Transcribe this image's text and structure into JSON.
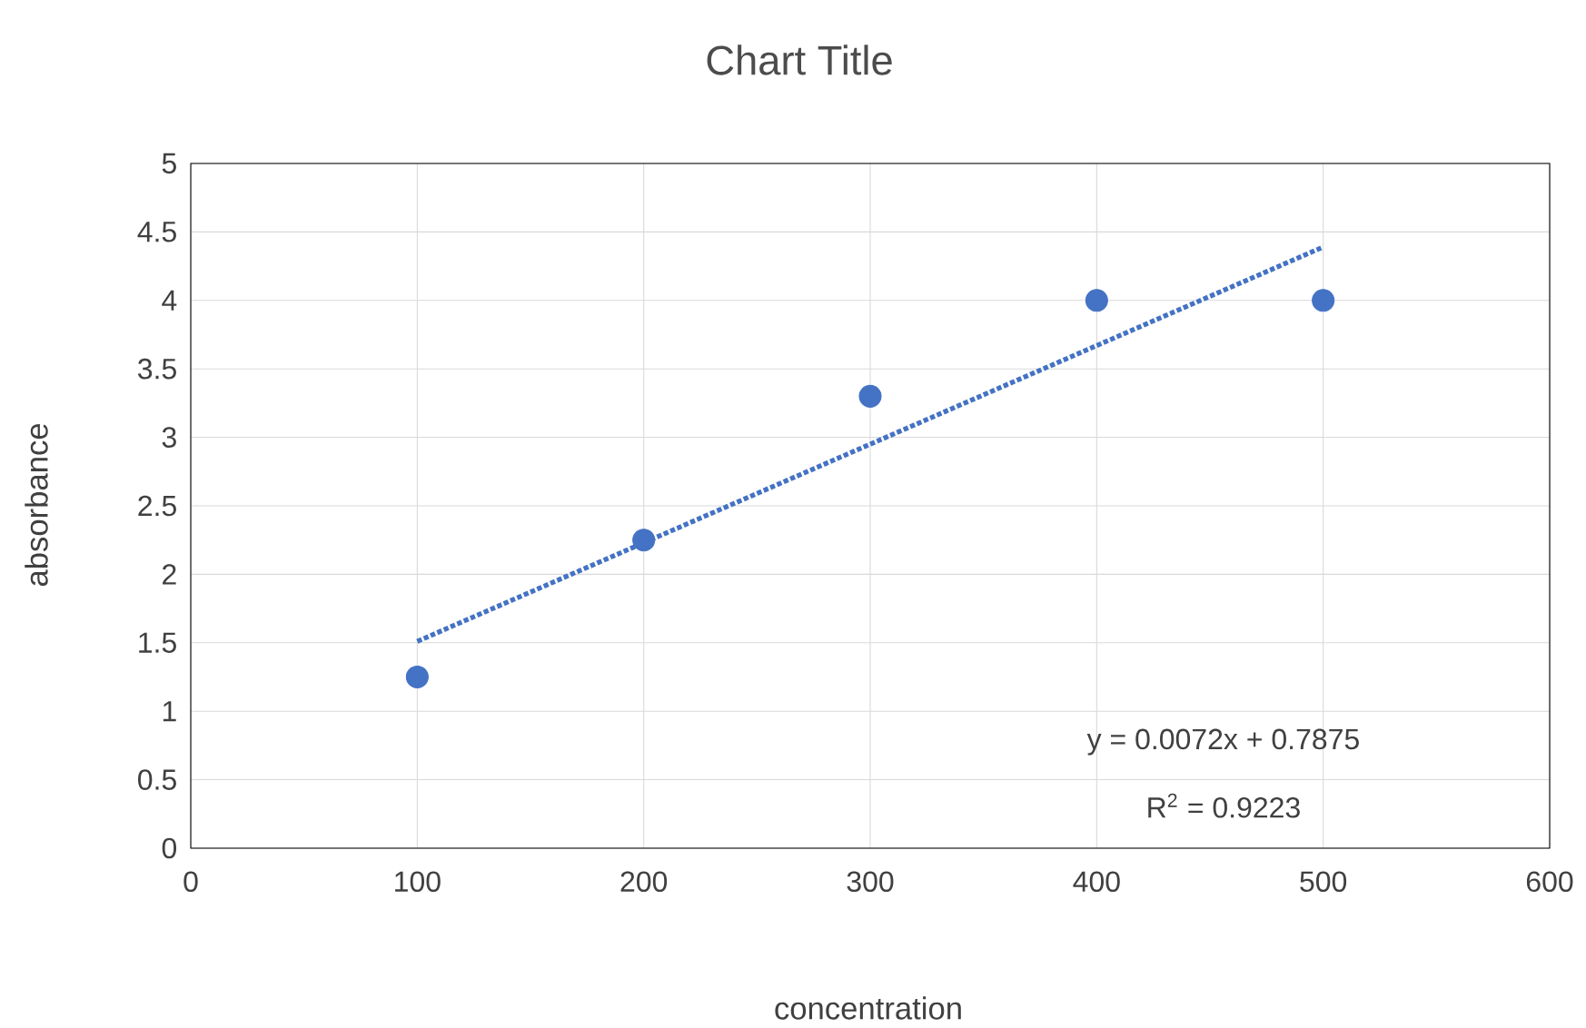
{
  "chart_data": {
    "type": "scatter",
    "title": "Chart Title",
    "xlabel": "concentration",
    "ylabel": "absorbance",
    "series": [
      {
        "color": "#4472c4",
        "x": [
          100,
          200,
          300,
          400,
          500
        ],
        "values": [
          1.25,
          2.25,
          3.3,
          4.0,
          4.0
        ],
        "marker": "circle"
      },
      {
        "type": "line",
        "color": "#4472c4",
        "x": [
          100,
          500
        ],
        "values": [
          1.51,
          4.39
        ],
        "line_style": "dotted",
        "marker": "none"
      }
    ],
    "annotations": [
      "y = 0.0072x + 0.7875",
      "R$^{2}$ = 0.9223"
    ],
    "xlim": [
      0,
      600
    ],
    "ylim": [
      0,
      5
    ],
    "xticks": [
      0,
      100,
      200,
      300,
      400,
      500,
      600
    ],
    "yticks": [
      0,
      0.5,
      1,
      1.5,
      2,
      2.5,
      3,
      3.5,
      4,
      4.5,
      5
    ],
    "grid": true
  }
}
